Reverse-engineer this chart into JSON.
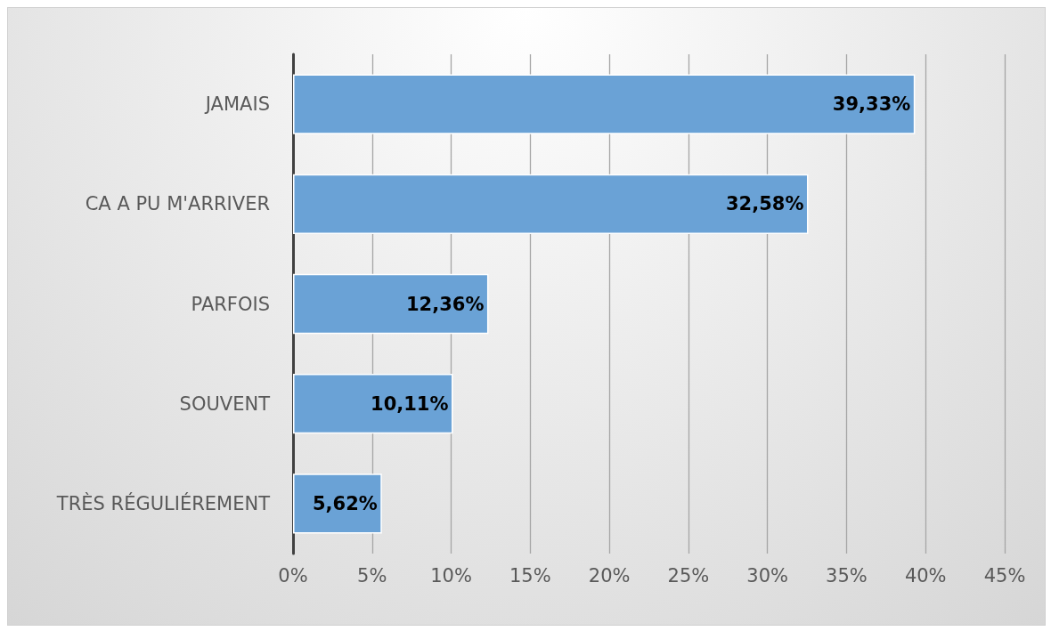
{
  "chart_data": {
    "type": "bar",
    "orientation": "horizontal",
    "categories": [
      "JAMAIS",
      "CA A PU M'ARRIVER",
      "PARFOIS",
      "SOUVENT",
      "TRÈS RÉGULIÉREMENT"
    ],
    "values": [
      39.33,
      32.58,
      12.36,
      10.11,
      5.62
    ],
    "value_labels": [
      "39,33%",
      "32,58%",
      "12,36%",
      "10,11%",
      "5,62%"
    ],
    "color": "#6aa2d6",
    "xlim": [
      0,
      45
    ],
    "xticks": [
      {
        "value": 0,
        "label": "0%"
      },
      {
        "value": 5,
        "label": "5%"
      },
      {
        "value": 10,
        "label": "10%"
      },
      {
        "value": 15,
        "label": "15%"
      },
      {
        "value": 20,
        "label": "20%"
      },
      {
        "value": 25,
        "label": "25%"
      },
      {
        "value": 30,
        "label": "30%"
      },
      {
        "value": 35,
        "label": "35%"
      },
      {
        "value": 40,
        "label": "40%"
      },
      {
        "value": 45,
        "label": "45%"
      }
    ],
    "grid": "x"
  }
}
